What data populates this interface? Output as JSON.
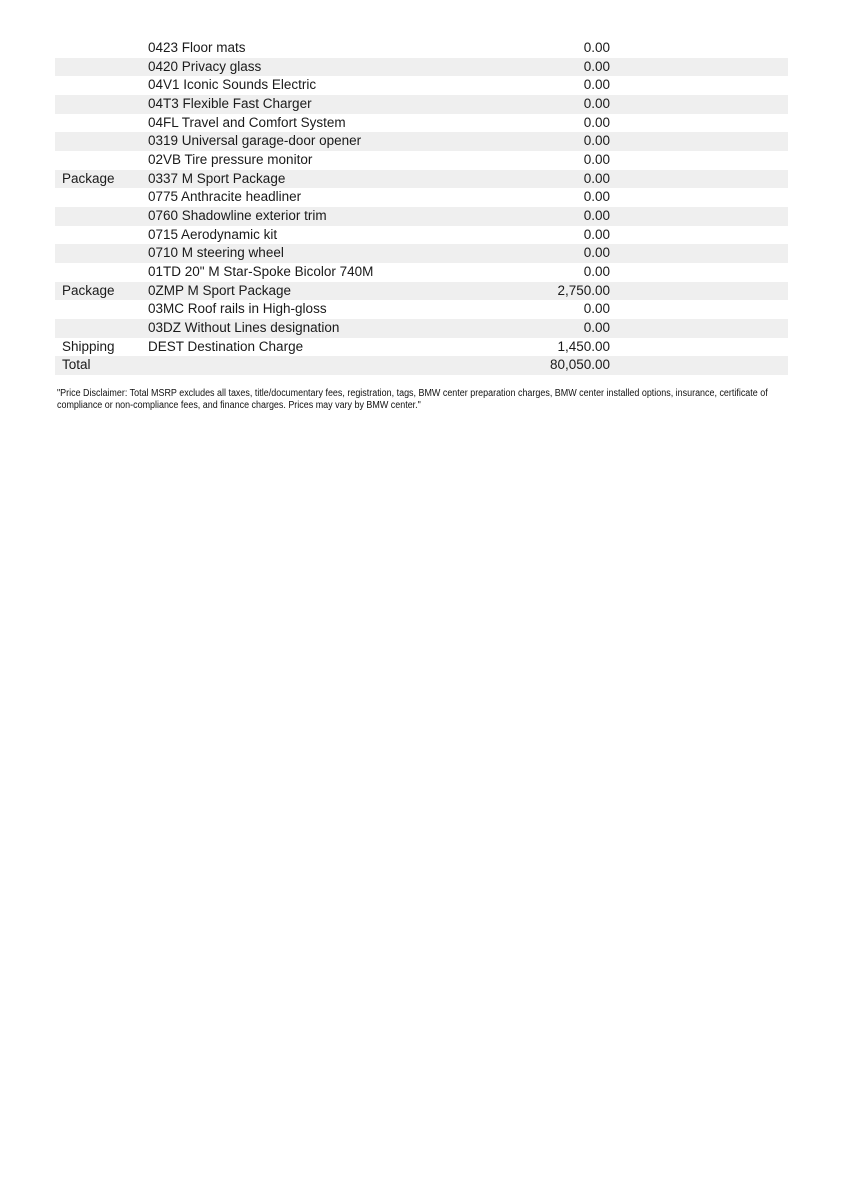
{
  "page": {
    "background": "#ffffff",
    "disclaimer": "\"Price Disclaimer: Total MSRP excludes all taxes, title/documentary fees, registration, tags, BMW center preparation charges, BMW center installed options, insurance, certificate of compliance or non-compliance fees, and finance charges. Prices may vary by BMW center.\""
  },
  "colors": {
    "row_stripe": "#efefef",
    "text": "#1a1a1a",
    "background": "#ffffff"
  },
  "table": {
    "columns": [
      "category",
      "item",
      "price"
    ],
    "rows": [
      {
        "category": "",
        "item": "0423 Floor mats",
        "price": "0.00"
      },
      {
        "category": "",
        "item": "0420 Privacy glass",
        "price": "0.00"
      },
      {
        "category": "",
        "item": "04V1 Iconic Sounds Electric",
        "price": "0.00"
      },
      {
        "category": "",
        "item": "04T3 Flexible Fast Charger",
        "price": "0.00"
      },
      {
        "category": "",
        "item": "04FL Travel and Comfort System",
        "price": "0.00"
      },
      {
        "category": "",
        "item": "0319 Universal garage-door opener",
        "price": "0.00"
      },
      {
        "category": "",
        "item": "02VB Tire pressure monitor",
        "price": "0.00"
      },
      {
        "category": "Package",
        "item": "0337 M Sport Package",
        "price": "0.00"
      },
      {
        "category": "",
        "item": "0775 Anthracite headliner",
        "price": "0.00"
      },
      {
        "category": "",
        "item": "0760 Shadowline exterior trim",
        "price": "0.00"
      },
      {
        "category": "",
        "item": "0715 Aerodynamic kit",
        "price": "0.00"
      },
      {
        "category": "",
        "item": "0710 M steering wheel",
        "price": "0.00"
      },
      {
        "category": "",
        "item": "01TD 20\" M Star-Spoke Bicolor 740M",
        "price": "0.00"
      },
      {
        "category": "Package",
        "item": "0ZMP M Sport Package",
        "price": "2,750.00"
      },
      {
        "category": "",
        "item": "03MC Roof rails in High-gloss",
        "price": "0.00"
      },
      {
        "category": "",
        "item": "03DZ Without Lines designation",
        "price": "0.00"
      },
      {
        "category": "Shipping",
        "item": "DEST Destination Charge",
        "price": "1,450.00"
      },
      {
        "category": "Total",
        "item": "",
        "price": "80,050.00"
      }
    ]
  }
}
